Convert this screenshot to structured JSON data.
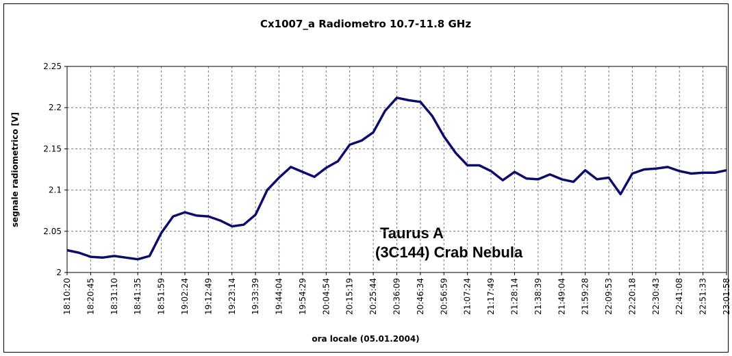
{
  "chart_data": {
    "type": "line",
    "title": "Cx1007_a Radiometro 10.7-11.8 GHz",
    "x_label": "ora locale (05.01.2004)",
    "y_label": "segnale radiometrico [V]",
    "annotation": [
      "Taurus A",
      "(3C144) Crab Nebula"
    ],
    "color": "#0c0c6c",
    "grid": true,
    "ylim": [
      2,
      2.25
    ],
    "yticks": [
      2,
      2.05,
      2.1,
      2.15,
      2.2,
      2.25
    ],
    "categories": [
      "18:10:20",
      null,
      "18:20:45",
      null,
      "18:31:10",
      null,
      "18:41:35",
      null,
      "18:51:59",
      null,
      "19:02:24",
      null,
      "19:12:49",
      null,
      "19:23:14",
      null,
      "19:33:39",
      null,
      "19:44:04",
      null,
      "19:54:29",
      null,
      "20:04:54",
      null,
      "20:15:19",
      null,
      "20:25:44",
      null,
      "20:36:09",
      null,
      "20:46:34",
      null,
      "20:56:59",
      null,
      "21:07:24",
      null,
      "21:17:49",
      null,
      "21:28:14",
      null,
      "21:38:39",
      null,
      "21:49:04",
      null,
      "21:59:28",
      null,
      "22:09:53",
      null,
      "22:20:18",
      null,
      "22:30:43",
      null,
      "22:41:08",
      null,
      "22:51:33",
      null,
      "23:01:58"
    ],
    "values": [
      2.027,
      2.024,
      2.019,
      2.018,
      2.02,
      2.018,
      2.016,
      2.02,
      2.048,
      2.068,
      2.073,
      2.069,
      2.068,
      2.063,
      2.056,
      2.058,
      2.07,
      2.1,
      2.115,
      2.128,
      2.122,
      2.116,
      2.127,
      2.135,
      2.155,
      2.16,
      2.17,
      2.196,
      2.212,
      2.209,
      2.207,
      2.19,
      2.165,
      2.145,
      2.13,
      2.13,
      2.123,
      2.112,
      2.122,
      2.114,
      2.113,
      2.119,
      2.113,
      2.11,
      2.124,
      2.113,
      2.115,
      2.095,
      2.12,
      2.125,
      2.126,
      2.128,
      2.123,
      2.12,
      2.121,
      2.121,
      2.124
    ]
  }
}
